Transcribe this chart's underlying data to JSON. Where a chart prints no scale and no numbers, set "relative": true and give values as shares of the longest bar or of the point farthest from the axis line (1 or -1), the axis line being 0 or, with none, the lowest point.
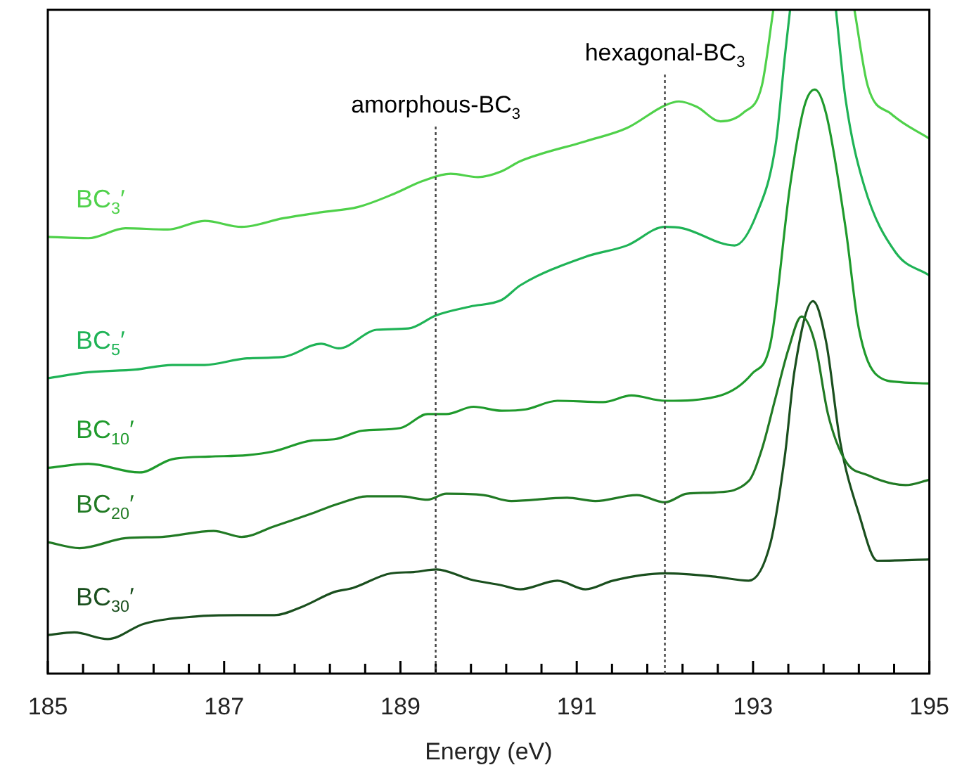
{
  "chart_data": {
    "type": "line",
    "relative": true,
    "xlabel": "Energy (eV)",
    "xlim": [
      185,
      195
    ],
    "xticks": [
      185,
      {
        "value": 185.4,
        "label": null
      },
      {
        "value": 185.8,
        "label": null
      },
      {
        "value": 186.2,
        "label": null
      },
      {
        "value": 186.6,
        "label": null
      },
      187,
      {
        "value": 187.4,
        "label": null
      },
      {
        "value": 187.8,
        "label": null
      },
      {
        "value": 188.2,
        "label": null
      },
      {
        "value": 188.6,
        "label": null
      },
      189,
      {
        "value": 189.4,
        "label": null
      },
      {
        "value": 189.8,
        "label": null
      },
      {
        "value": 190.2,
        "label": null
      },
      {
        "value": 190.6,
        "label": null
      },
      191,
      {
        "value": 191.4,
        "label": null
      },
      {
        "value": 191.8,
        "label": null
      },
      {
        "value": 192.2,
        "label": null
      },
      {
        "value": 192.6,
        "label": null
      },
      193,
      {
        "value": 193.4,
        "label": null
      },
      {
        "value": 193.8,
        "label": null
      },
      {
        "value": 194.2,
        "label": null
      },
      {
        "value": 194.6,
        "label": null
      },
      195
    ],
    "grid": false,
    "legend": false,
    "marker": "none",
    "line_style": "solid",
    "ref_lines": [
      {
        "axis": "x",
        "value": 189.4,
        "label": "amorphous-BC$_{3}$",
        "line_style": "dotted",
        "color": "#404040"
      },
      {
        "axis": "x",
        "value": 192.0,
        "label": "hexagonal-BC$_{3}$",
        "line_style": "dotted",
        "color": "#404040"
      }
    ],
    "series": [
      {
        "name": "BC$_{3}$′",
        "color": "#4fd14a",
        "x": [
          185,
          185.46,
          185.88,
          186.36,
          186.78,
          187.2,
          187.67,
          188.1,
          188.52,
          188.93,
          189.25,
          189.57,
          189.88,
          190.15,
          190.36,
          191.1,
          191.57,
          192.0,
          192.16,
          192.36,
          192.63,
          192.89,
          193.1,
          193.23,
          193.5,
          193.8,
          194.15,
          194.3,
          194.57,
          195
        ],
        "values": [
          0.658,
          0.656,
          0.671,
          0.669,
          0.682,
          0.673,
          0.686,
          0.695,
          0.703,
          0.723,
          0.742,
          0.753,
          0.748,
          0.757,
          0.772,
          0.802,
          0.822,
          0.856,
          0.862,
          0.854,
          0.832,
          0.845,
          0.886,
          1,
          null,
          null,
          1,
          0.886,
          0.843,
          0.806
        ]
      },
      {
        "name": "BC$_{5}$′",
        "color": "#1fb356",
        "x": [
          185,
          185.46,
          185.99,
          186.41,
          186.78,
          187.26,
          187.67,
          188.1,
          188.3,
          188.73,
          189.09,
          189.41,
          189.79,
          190.15,
          190.36,
          191.1,
          191.57,
          192.0,
          192.2,
          192.79,
          193.04,
          193.26,
          193.36,
          193.42,
          193.7,
          193.94,
          194.05,
          194.26,
          194.62,
          195
        ],
        "values": [
          0.445,
          0.454,
          0.458,
          0.465,
          0.465,
          0.475,
          0.477,
          0.497,
          0.49,
          0.518,
          0.52,
          0.54,
          0.553,
          0.563,
          0.585,
          0.628,
          0.645,
          0.673,
          0.671,
          0.645,
          0.692,
          0.8,
          0.929,
          1,
          null,
          1,
          0.865,
          0.735,
          0.634,
          0.6
        ]
      },
      {
        "name": "BC$_{10}$′",
        "color": "#1f9a2c",
        "x": [
          185,
          185.46,
          186.04,
          186.41,
          186.83,
          187.26,
          187.57,
          187.99,
          188.25,
          188.57,
          189.0,
          189.31,
          189.52,
          189.83,
          190.15,
          190.42,
          190.78,
          191.3,
          191.62,
          192.0,
          192.63,
          192.99,
          193.2,
          193.42,
          193.58,
          193.7,
          193.83,
          194.05,
          194.2,
          194.41,
          194.68,
          195
        ],
        "values": [
          0.31,
          0.316,
          0.303,
          0.323,
          0.327,
          0.329,
          0.335,
          0.351,
          0.353,
          0.366,
          0.37,
          0.391,
          0.391,
          0.402,
          0.396,
          0.398,
          0.411,
          0.409,
          0.419,
          0.411,
          0.419,
          0.452,
          0.499,
          0.735,
          0.854,
          0.88,
          0.843,
          0.671,
          0.52,
          0.449,
          0.439,
          0.437
        ]
      },
      {
        "name": "BC$_{20}$′",
        "color": "#217a24",
        "x": [
          185,
          185.36,
          185.88,
          186.3,
          186.88,
          187.2,
          187.57,
          187.99,
          188.3,
          188.62,
          189.0,
          189.31,
          189.52,
          189.94,
          190.26,
          190.89,
          191.21,
          191.68,
          192.0,
          192.25,
          192.57,
          192.95,
          193.1,
          193.25,
          193.4,
          193.55,
          193.7,
          193.85,
          194.05,
          194.3,
          194.73,
          195
        ],
        "values": [
          0.198,
          0.189,
          0.204,
          0.206,
          0.215,
          0.206,
          0.222,
          0.241,
          0.256,
          0.267,
          0.267,
          0.262,
          0.271,
          0.269,
          0.26,
          0.265,
          0.26,
          0.269,
          0.258,
          0.271,
          0.273,
          0.29,
          0.338,
          0.413,
          0.488,
          0.538,
          0.499,
          0.391,
          0.32,
          0.299,
          0.284,
          0.292
        ]
      },
      {
        "name": "BC$_{30}$′",
        "color": "#1a4f1e",
        "x": [
          185,
          185.3,
          185.68,
          186.09,
          186.67,
          187.15,
          187.57,
          187.89,
          188.25,
          188.46,
          188.89,
          189.15,
          189.41,
          189.79,
          190.15,
          190.36,
          190.78,
          191.1,
          191.41,
          192.0,
          192.57,
          192.95,
          193.2,
          193.36,
          193.47,
          193.68,
          193.83,
          193.99,
          194.2,
          194.41,
          195
        ],
        "values": [
          0.058,
          0.062,
          0.052,
          0.075,
          0.086,
          0.088,
          0.088,
          0.101,
          0.123,
          0.129,
          0.151,
          0.153,
          0.157,
          0.142,
          0.133,
          0.127,
          0.14,
          0.127,
          0.14,
          0.151,
          0.146,
          0.14,
          0.198,
          0.327,
          0.456,
          0.561,
          0.499,
          0.348,
          0.241,
          0.17,
          0.172
        ]
      }
    ]
  }
}
